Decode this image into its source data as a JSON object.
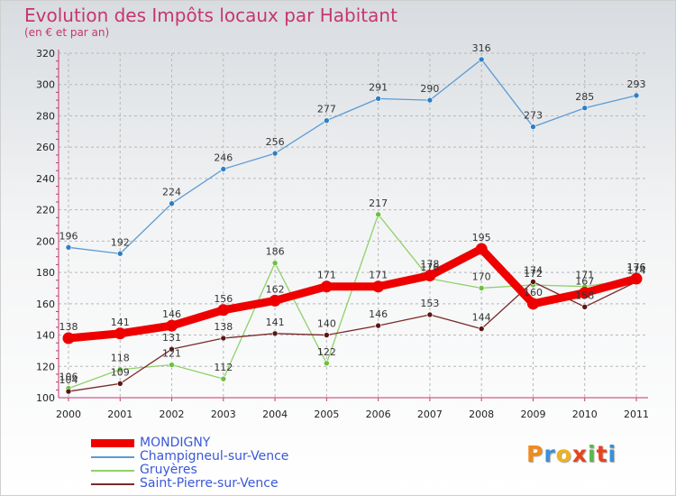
{
  "title": "Evolution des Impôts locaux par Habitant",
  "subtitle": "(en € et par an)",
  "chart_data": {
    "type": "line",
    "title": "Evolution des Impôts locaux par Habitant",
    "subtitle": "(en € et par an)",
    "xlabel": "",
    "ylabel": "",
    "ylim": [
      100,
      320
    ],
    "yticks": [
      100,
      120,
      140,
      160,
      180,
      200,
      220,
      240,
      260,
      280,
      300,
      320
    ],
    "categories": [
      "2000",
      "2001",
      "2002",
      "2003",
      "2004",
      "2005",
      "2006",
      "2007",
      "2008",
      "2009",
      "2010",
      "2011"
    ],
    "grid": true,
    "legend": "bottom-left",
    "series": [
      {
        "name": "Champigneul-sur-Vence",
        "color": "#5b9bd5",
        "marker": "#2f7dc4",
        "values": [
          196,
          192,
          224,
          246,
          256,
          277,
          291,
          290,
          316,
          273,
          285,
          293
        ]
      },
      {
        "name": "Gruyères",
        "color": "#8fd16a",
        "marker": "#6cc13a",
        "values": [
          106,
          118,
          121,
          112,
          186,
          122,
          217,
          176,
          170,
          172,
          171,
          176
        ]
      },
      {
        "name": "Saint-Pierre-sur-Vence",
        "color": "#7a2a2a",
        "marker": "#5a1616",
        "values": [
          104,
          109,
          131,
          138,
          141,
          140,
          146,
          153,
          144,
          174,
          158,
          174
        ]
      },
      {
        "name": "MONDIGNY",
        "color": "#ee0000",
        "marker": "#ee0000",
        "values": [
          138,
          141,
          146,
          156,
          162,
          171,
          171,
          178,
          195,
          160,
          167,
          176
        ]
      }
    ],
    "legend_order": [
      "MONDIGNY",
      "Champigneul-sur-Vence",
      "Gruyères",
      "Saint-Pierre-sur-Vence"
    ]
  },
  "logo": {
    "letters": [
      "P",
      "r",
      "o",
      "x",
      "i",
      "t",
      "i"
    ],
    "colors": [
      "#f08a1c",
      "#3a8fd8",
      "#f0b21c",
      "#e8431c",
      "#57b84a",
      "#e8431c",
      "#3a8fd8"
    ]
  }
}
